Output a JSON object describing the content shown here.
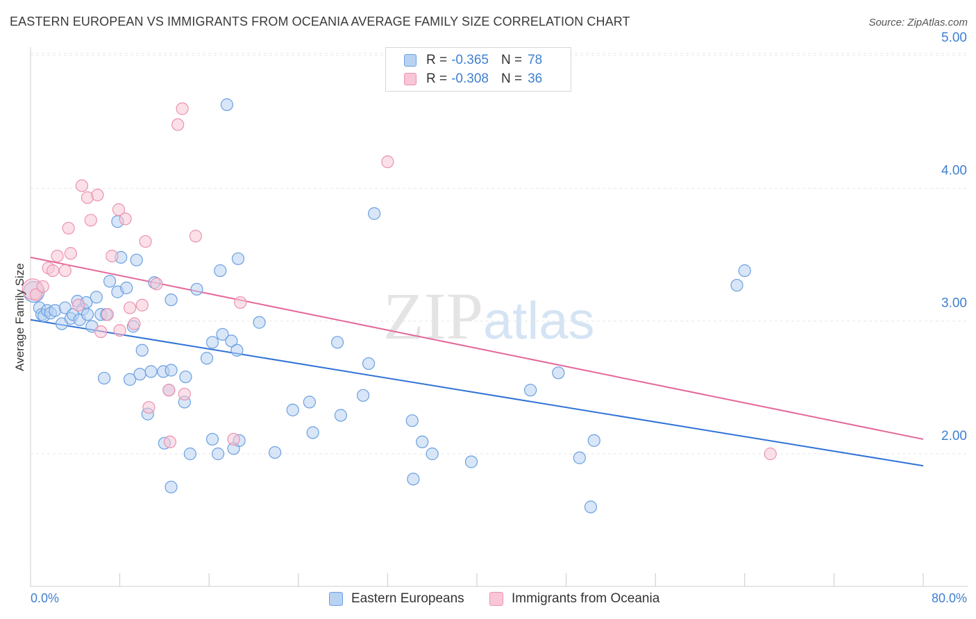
{
  "header": {
    "title": "EASTERN EUROPEAN VS IMMIGRANTS FROM OCEANIA AVERAGE FAMILY SIZE CORRELATION CHART",
    "source": "Source: ZipAtlas.com"
  },
  "watermark": {
    "zip": "ZIP",
    "atlas": "atlas"
  },
  "legend": {
    "series1": {
      "r_label": "R =",
      "r_value": "-0.365",
      "n_label": "N =",
      "n_value": "78"
    },
    "series2": {
      "r_label": "R =",
      "r_value": "-0.308",
      "n_label": "N =",
      "n_value": "36"
    }
  },
  "colors": {
    "blue_fill": "#b8d2f2",
    "blue_stroke": "#6a9fe0",
    "blue_line": "#2f72d6",
    "pink_fill": "#f8c6d6",
    "pink_stroke": "#ec92b0",
    "pink_line": "#e4679a",
    "grid": "#e6e6e6",
    "tick_text": "#3f7fd0"
  },
  "chart_data": {
    "type": "scatter",
    "title": "EASTERN EUROPEAN VS IMMIGRANTS FROM OCEANIA AVERAGE FAMILY SIZE CORRELATION CHART",
    "xlabel": "",
    "ylabel": "Average Family Size",
    "xlim": [
      0,
      80
    ],
    "ylim": [
      1.0,
      5.15
    ],
    "x_tick_labels": [
      "0.0%",
      "80.0%"
    ],
    "y_ticks": [
      2.0,
      3.0,
      4.0,
      5.0
    ],
    "y_tick_labels": [
      "2.00",
      "3.00",
      "4.00",
      "5.00"
    ],
    "grid": true,
    "legend_position": "top-center and bottom",
    "series": [
      {
        "name": "Eastern Europeans",
        "color": "#6a9fe0",
        "points": [
          [
            0.3,
            3.22
          ],
          [
            0.8,
            3.1
          ],
          [
            1.0,
            3.05
          ],
          [
            1.2,
            3.04
          ],
          [
            1.5,
            3.08
          ],
          [
            1.8,
            3.06
          ],
          [
            2.2,
            3.08
          ],
          [
            2.8,
            2.98
          ],
          [
            3.1,
            3.1
          ],
          [
            3.6,
            3.02
          ],
          [
            3.8,
            3.05
          ],
          [
            4.2,
            3.15
          ],
          [
            4.4,
            3.01
          ],
          [
            4.7,
            3.09
          ],
          [
            5.0,
            3.14
          ],
          [
            5.1,
            3.05
          ],
          [
            5.5,
            2.96
          ],
          [
            5.9,
            3.18
          ],
          [
            6.3,
            3.05
          ],
          [
            6.6,
            2.57
          ],
          [
            6.8,
            3.05
          ],
          [
            7.1,
            3.3
          ],
          [
            7.8,
            3.22
          ],
          [
            7.8,
            3.75
          ],
          [
            8.1,
            3.48
          ],
          [
            8.6,
            3.25
          ],
          [
            8.9,
            2.56
          ],
          [
            9.2,
            2.96
          ],
          [
            9.5,
            3.46
          ],
          [
            9.8,
            2.6
          ],
          [
            10.0,
            2.78
          ],
          [
            10.5,
            2.3
          ],
          [
            10.8,
            2.62
          ],
          [
            11.1,
            3.29
          ],
          [
            11.9,
            2.62
          ],
          [
            12.0,
            2.08
          ],
          [
            12.4,
            2.48
          ],
          [
            12.6,
            2.63
          ],
          [
            12.6,
            1.75
          ],
          [
            12.6,
            3.16
          ],
          [
            13.8,
            2.39
          ],
          [
            13.9,
            2.58
          ],
          [
            14.3,
            2.0
          ],
          [
            14.9,
            3.24
          ],
          [
            15.8,
            2.72
          ],
          [
            16.3,
            2.84
          ],
          [
            16.3,
            2.11
          ],
          [
            16.8,
            2.0
          ],
          [
            17.0,
            3.38
          ],
          [
            17.2,
            2.9
          ],
          [
            17.6,
            4.63
          ],
          [
            18.0,
            2.85
          ],
          [
            18.2,
            2.04
          ],
          [
            18.5,
            2.78
          ],
          [
            18.7,
            2.1
          ],
          [
            18.6,
            3.47
          ],
          [
            20.5,
            2.99
          ],
          [
            21.9,
            2.01
          ],
          [
            23.5,
            2.33
          ],
          [
            25.0,
            2.39
          ],
          [
            25.3,
            2.16
          ],
          [
            27.5,
            2.84
          ],
          [
            27.8,
            2.29
          ],
          [
            29.8,
            2.44
          ],
          [
            30.3,
            2.68
          ],
          [
            30.8,
            3.81
          ],
          [
            34.2,
            2.25
          ],
          [
            34.3,
            1.81
          ],
          [
            35.1,
            2.09
          ],
          [
            36.0,
            2.0
          ],
          [
            39.5,
            1.94
          ],
          [
            44.8,
            2.48
          ],
          [
            47.3,
            2.61
          ],
          [
            49.2,
            1.97
          ],
          [
            50.2,
            1.6
          ],
          [
            50.5,
            2.1
          ],
          [
            63.3,
            3.27
          ],
          [
            64.0,
            3.38
          ]
        ]
      },
      {
        "name": "Immigrants from Oceania",
        "color": "#ec92b0",
        "points": [
          [
            0.2,
            3.24
          ],
          [
            0.5,
            3.2
          ],
          [
            1.1,
            3.26
          ],
          [
            1.6,
            3.4
          ],
          [
            2.0,
            3.38
          ],
          [
            2.4,
            3.49
          ],
          [
            3.1,
            3.38
          ],
          [
            3.4,
            3.7
          ],
          [
            3.6,
            3.51
          ],
          [
            4.3,
            3.12
          ],
          [
            4.6,
            4.02
          ],
          [
            5.1,
            3.93
          ],
          [
            5.4,
            3.76
          ],
          [
            6.0,
            3.95
          ],
          [
            6.3,
            2.92
          ],
          [
            6.9,
            3.05
          ],
          [
            7.3,
            3.49
          ],
          [
            7.9,
            3.84
          ],
          [
            8.0,
            2.93
          ],
          [
            8.5,
            3.77
          ],
          [
            8.9,
            3.1
          ],
          [
            9.3,
            2.98
          ],
          [
            10.0,
            3.12
          ],
          [
            10.3,
            3.6
          ],
          [
            10.6,
            2.35
          ],
          [
            11.3,
            3.28
          ],
          [
            12.4,
            2.48
          ],
          [
            12.5,
            2.09
          ],
          [
            13.2,
            4.48
          ],
          [
            13.6,
            4.6
          ],
          [
            13.8,
            2.45
          ],
          [
            14.8,
            3.64
          ],
          [
            18.2,
            2.11
          ],
          [
            18.8,
            3.14
          ],
          [
            32.0,
            4.2
          ],
          [
            66.3,
            2.0
          ]
        ]
      }
    ],
    "trend_lines": [
      {
        "series": "Eastern Europeans",
        "x": [
          0,
          80
        ],
        "y": [
          3.01,
          1.91
        ]
      },
      {
        "series": "Immigrants from Oceania",
        "x": [
          0,
          80
        ],
        "y": [
          3.48,
          2.11
        ]
      }
    ]
  },
  "bottom_legend": {
    "items": [
      {
        "label": "Eastern Europeans"
      },
      {
        "label": "Immigrants from Oceania"
      }
    ]
  }
}
